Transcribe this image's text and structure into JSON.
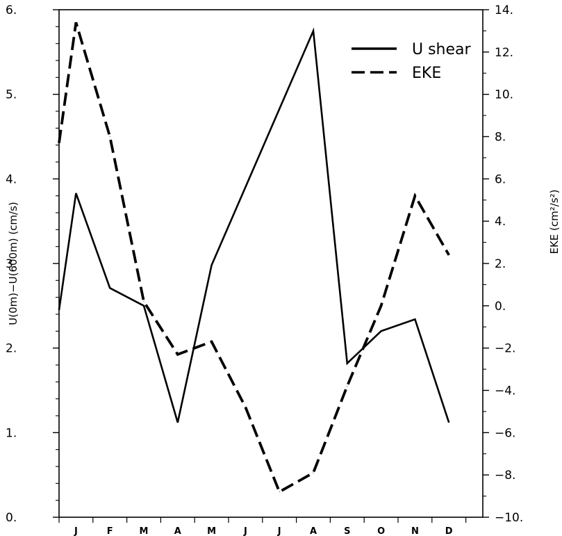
{
  "chart_data": {
    "type": "line",
    "categories": [
      "J",
      "F",
      "M",
      "A",
      "M",
      "J",
      "J",
      "A",
      "S",
      "O",
      "N",
      "D"
    ],
    "x_start": 0,
    "x": [
      0,
      1,
      2,
      3,
      4,
      5,
      6,
      7,
      8,
      9,
      10,
      11,
      12
    ],
    "xlim": [
      0,
      12.5
    ],
    "left_axis": {
      "label": "U(0m)−U(600m)  (cm/s)",
      "ylim": [
        0,
        6
      ],
      "ticks": [
        0,
        1,
        2,
        3,
        4,
        5,
        6
      ],
      "tick_labels": [
        "0.",
        "1.",
        "2.",
        "3.",
        "4.",
        "5.",
        "6."
      ]
    },
    "right_axis": {
      "label": "EKE  (cm²/s²)",
      "ylim": [
        -10,
        14
      ],
      "ticks": [
        -10,
        -8,
        -6,
        -4,
        -2,
        0,
        2,
        4,
        6,
        8,
        10,
        12,
        14
      ],
      "tick_labels": [
        "−10.",
        "−8.",
        "−6.",
        "−4.",
        "−2.",
        "0.",
        "2.",
        "4.",
        "6.",
        "8.",
        "10.",
        "12.",
        "14."
      ]
    },
    "series": [
      {
        "name": "U shear",
        "axis": "left",
        "style": "solid",
        "x": [
          0,
          0.5,
          1.5,
          2.5,
          3.5,
          4.5,
          7.5,
          8.5,
          9.5,
          10.5,
          11.5
        ],
        "values": [
          2.45,
          3.83,
          2.71,
          2.5,
          1.12,
          2.98,
          5.75,
          1.82,
          2.2,
          2.34,
          1.12
        ]
      },
      {
        "name": "EKE",
        "axis": "right",
        "style": "dashed",
        "x": [
          0,
          0.5,
          1.5,
          2.5,
          3.5,
          4.5,
          5.5,
          6.5,
          7.5,
          8.5,
          9.5,
          10.5,
          11.5
        ],
        "values": [
          7.7,
          13.4,
          8.0,
          0.2,
          -2.3,
          -1.7,
          -4.8,
          -8.8,
          -7.9,
          -3.8,
          0.0,
          5.2,
          2.4
        ]
      }
    ],
    "legend": {
      "placement": "top-right"
    },
    "grid": false,
    "colors": {
      "line": "#000000",
      "background": "#ffffff"
    }
  }
}
